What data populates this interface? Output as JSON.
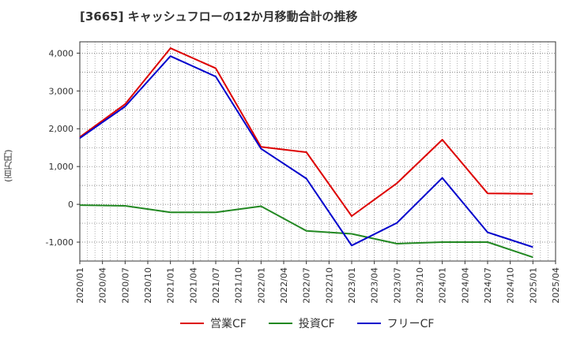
{
  "chart_data": {
    "type": "line",
    "title": "[3665]  キャッシュフローの12か月移動合計の推移",
    "ylabel": "(百万円)",
    "xlabel": "",
    "ylim": [
      -1500,
      4300
    ],
    "y_ticks": [
      -1000,
      0,
      1000,
      2000,
      3000,
      4000
    ],
    "y_tick_labels": [
      "-1,000",
      "0",
      "1,000",
      "2,000",
      "3,000",
      "4,000"
    ],
    "x_ticks": [
      "2020/01",
      "2020/04",
      "2020/07",
      "2020/10",
      "2021/01",
      "2021/04",
      "2021/07",
      "2021/10",
      "2022/01",
      "2022/04",
      "2022/07",
      "2022/10",
      "2023/01",
      "2023/04",
      "2023/07",
      "2023/10",
      "2024/01",
      "2024/04",
      "2024/07",
      "2024/10",
      "2025/01",
      "2025/04"
    ],
    "grid": true,
    "series": [
      {
        "name": "営業CF",
        "color": "#dd0000",
        "points": [
          [
            "2020/01",
            1780
          ],
          [
            "2020/07",
            2650
          ],
          [
            "2021/01",
            4130
          ],
          [
            "2021/07",
            3600
          ],
          [
            "2022/01",
            1520
          ],
          [
            "2022/07",
            1380
          ],
          [
            "2023/01",
            -310
          ],
          [
            "2023/07",
            560
          ],
          [
            "2024/01",
            1710
          ],
          [
            "2024/07",
            290
          ],
          [
            "2025/01",
            280
          ]
        ]
      },
      {
        "name": "投資CF",
        "color": "#228822",
        "points": [
          [
            "2020/01",
            -20
          ],
          [
            "2020/07",
            -40
          ],
          [
            "2021/01",
            -210
          ],
          [
            "2021/07",
            -210
          ],
          [
            "2022/01",
            -50
          ],
          [
            "2022/07",
            -700
          ],
          [
            "2023/01",
            -780
          ],
          [
            "2023/07",
            -1040
          ],
          [
            "2024/01",
            -1000
          ],
          [
            "2024/07",
            -1000
          ],
          [
            "2025/01",
            -1400
          ]
        ]
      },
      {
        "name": "フリーCF",
        "color": "#0000cc",
        "points": [
          [
            "2020/01",
            1750
          ],
          [
            "2020/07",
            2590
          ],
          [
            "2021/01",
            3920
          ],
          [
            "2021/07",
            3380
          ],
          [
            "2022/01",
            1470
          ],
          [
            "2022/07",
            680
          ],
          [
            "2023/01",
            -1090
          ],
          [
            "2023/07",
            -490
          ],
          [
            "2024/01",
            700
          ],
          [
            "2024/07",
            -740
          ],
          [
            "2025/01",
            -1130
          ]
        ]
      }
    ]
  }
}
